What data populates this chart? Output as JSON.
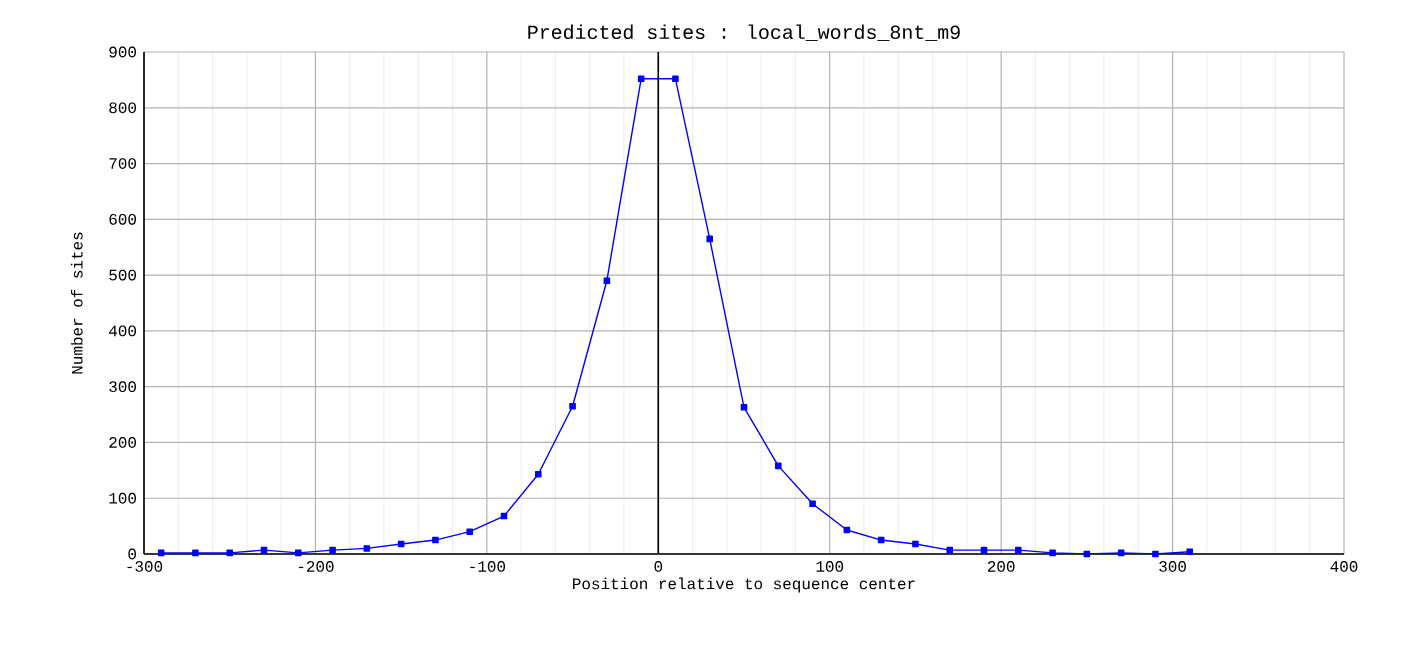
{
  "chart_data": {
    "type": "line",
    "title": "Predicted sites : local_words_8nt_m9",
    "xlabel": "Position relative to sequence center",
    "ylabel": "Number of sites",
    "x": [
      -290,
      -270,
      -250,
      -230,
      -210,
      -190,
      -170,
      -150,
      -130,
      -110,
      -90,
      -70,
      -50,
      -30,
      -10,
      10,
      30,
      50,
      70,
      90,
      110,
      130,
      150,
      170,
      190,
      210,
      230,
      250,
      270,
      290,
      310
    ],
    "series": [
      {
        "color": "#0000ff",
        "values": [
          2,
          2,
          2,
          7,
          2,
          7,
          10,
          18,
          25,
          40,
          68,
          143,
          265,
          490,
          852,
          852,
          565,
          263,
          158,
          90,
          43,
          25,
          18,
          7,
          7,
          7,
          2,
          0,
          2,
          0,
          4
        ]
      }
    ],
    "xlim": [
      -300,
      400
    ],
    "xticks": [
      -300,
      -200,
      -100,
      0,
      100,
      200,
      300,
      400
    ],
    "ylim": [
      0,
      900
    ],
    "yticks": [
      0,
      100,
      200,
      300,
      400,
      500,
      600,
      700,
      800,
      900
    ],
    "grid": true,
    "marker": "square",
    "line_style": "solid",
    "ref_lines": [
      {
        "axis": "x",
        "value": 0,
        "color": "#000000"
      }
    ]
  }
}
